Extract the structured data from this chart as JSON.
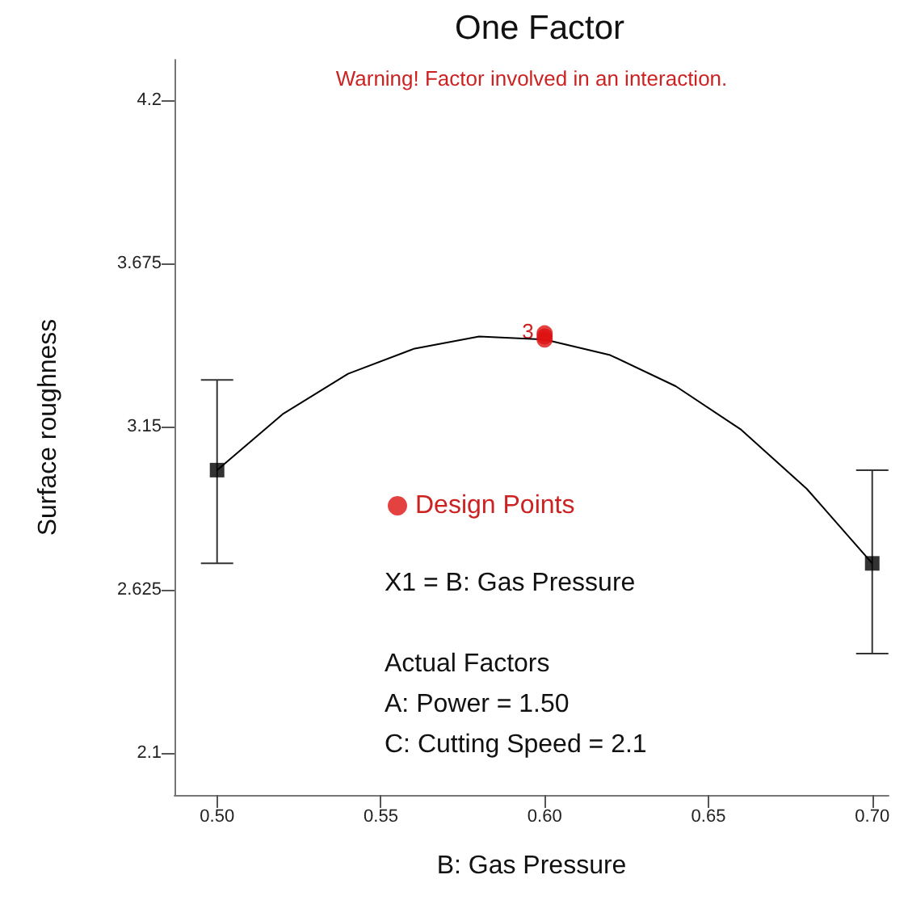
{
  "chart_data": {
    "type": "line",
    "title": "One Factor",
    "xlabel": "B: Gas Pressure",
    "ylabel": "Surface roughness",
    "xlim": [
      0.487,
      0.705
    ],
    "ylim": [
      1.965,
      4.33
    ],
    "xticks": [
      {
        "value": 0.5,
        "label": "0.50"
      },
      {
        "value": 0.55,
        "label": "0.55"
      },
      {
        "value": 0.6,
        "label": "0.60"
      },
      {
        "value": 0.65,
        "label": "0.65"
      },
      {
        "value": 0.7,
        "label": "0.70"
      }
    ],
    "yticks": [
      2.1,
      2.625,
      3.15,
      3.675,
      4.2
    ],
    "grid": false,
    "legend": "center",
    "series": [
      {
        "color": "#000000",
        "marker": "none",
        "x": [
          0.5,
          0.52,
          0.54,
          0.56,
          0.58,
          0.6,
          0.62,
          0.64,
          0.66,
          0.68,
          0.7
        ],
        "values": [
          3.01,
          3.19,
          3.32,
          3.4,
          3.44,
          3.43,
          3.38,
          3.28,
          3.14,
          2.95,
          2.71
        ]
      },
      {
        "type": "scatter",
        "color": "#000000",
        "marker": "square",
        "x": [
          0.5,
          0.7
        ],
        "values": [
          3.01,
          2.71
        ],
        "errors": [
          [
            2.71,
            3.3
          ],
          [
            2.42,
            3.01
          ]
        ]
      },
      {
        "type": "scatter",
        "name": "Design Points",
        "color": "#dd1111",
        "marker": "circle",
        "x": [
          0.6,
          0.6,
          0.6
        ],
        "values": [
          3.43,
          3.44,
          3.45
        ]
      }
    ],
    "annotations": [
      "Warning! Factor involved in an interaction.",
      "X1 = B: Gas Pressure",
      "Actual Factors",
      "A: Power = 1.50",
      "C: Cutting Speed = 2.1",
      {
        "text": "3",
        "x": 0.6,
        "y": 3.45
      }
    ]
  }
}
